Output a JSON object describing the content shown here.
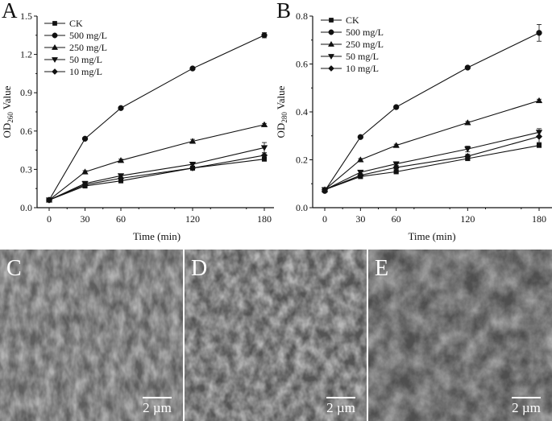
{
  "chart_data": [
    {
      "panel": "A",
      "type": "line",
      "title": "",
      "xlabel": "Time (min)",
      "ylabel": "OD260 Value",
      "ylabel_main": "OD",
      "ylabel_sub": "260",
      "ylabel_tail": " Value",
      "x": [
        0,
        30,
        60,
        120,
        180
      ],
      "xticks": [
        "0",
        "30",
        "60",
        "120",
        "180"
      ],
      "yticks": [
        "0.0",
        "0.3",
        "0.6",
        "0.9",
        "1.2",
        "1.5"
      ],
      "ylim": [
        0,
        1.5
      ],
      "grid": false,
      "legend_position": "upper left",
      "series": [
        {
          "name": "CK",
          "marker": "square",
          "values": [
            0.06,
            0.17,
            0.21,
            0.31,
            0.38
          ],
          "errors": [
            0.005,
            0.01,
            0.01,
            0.01,
            0.015
          ]
        },
        {
          "name": "500 mg/L",
          "marker": "circle",
          "values": [
            0.06,
            0.54,
            0.78,
            1.09,
            1.35
          ],
          "errors": [
            0.005,
            0.01,
            0.01,
            0.01,
            0.02
          ]
        },
        {
          "name": "250 mg/L",
          "marker": "triangle-up",
          "values": [
            0.06,
            0.28,
            0.37,
            0.52,
            0.65
          ],
          "errors": [
            0.005,
            0.01,
            0.01,
            0.015,
            0.01
          ]
        },
        {
          "name": "50 mg/L",
          "marker": "triangle-down",
          "values": [
            0.06,
            0.19,
            0.25,
            0.34,
            0.47
          ],
          "errors": [
            0.005,
            0.01,
            0.015,
            0.015,
            0.04
          ]
        },
        {
          "name": "10 mg/L",
          "marker": "diamond",
          "values": [
            0.06,
            0.18,
            0.23,
            0.31,
            0.41
          ],
          "errors": [
            0.005,
            0.01,
            0.01,
            0.01,
            0.02
          ]
        }
      ]
    },
    {
      "panel": "B",
      "type": "line",
      "title": "",
      "xlabel": "Time (min)",
      "ylabel": "OD280 Value",
      "ylabel_main": "OD",
      "ylabel_sub": "280",
      "ylabel_tail": " Value",
      "x": [
        0,
        30,
        60,
        120,
        180
      ],
      "xticks": [
        "0",
        "30",
        "60",
        "120",
        "180"
      ],
      "yticks": [
        "0.0",
        "0.2",
        "0.4",
        "0.6",
        "0.8"
      ],
      "ylim": [
        0,
        0.8
      ],
      "grid": false,
      "legend_position": "upper left",
      "series": [
        {
          "name": "CK",
          "marker": "square",
          "values": [
            0.075,
            0.13,
            0.15,
            0.205,
            0.26
          ],
          "errors": [
            0.003,
            0.005,
            0.005,
            0.006,
            0.006
          ]
        },
        {
          "name": "500 mg/L",
          "marker": "circle",
          "values": [
            0.07,
            0.295,
            0.42,
            0.585,
            0.73
          ],
          "errors": [
            0.003,
            0.005,
            0.006,
            0.006,
            0.035
          ]
        },
        {
          "name": "250 mg/L",
          "marker": "triangle-up",
          "values": [
            0.075,
            0.2,
            0.26,
            0.355,
            0.447
          ],
          "errors": [
            0.003,
            0.005,
            0.005,
            0.005,
            0.006
          ]
        },
        {
          "name": "50 mg/L",
          "marker": "triangle-down",
          "values": [
            0.075,
            0.148,
            0.183,
            0.245,
            0.315
          ],
          "errors": [
            0.003,
            0.005,
            0.006,
            0.012,
            0.015
          ]
        },
        {
          "name": "10 mg/L",
          "marker": "diamond",
          "values": [
            0.075,
            0.135,
            0.168,
            0.215,
            0.297
          ],
          "errors": [
            0.003,
            0.005,
            0.006,
            0.008,
            0.025
          ]
        }
      ]
    }
  ],
  "panels": {
    "A": {
      "label": "A"
    },
    "B": {
      "label": "B"
    },
    "C": {
      "label": "C",
      "scale_bar": "2 µm"
    },
    "D": {
      "label": "D",
      "scale_bar": "2 µm"
    },
    "E": {
      "label": "E",
      "scale_bar": "2 µm"
    }
  }
}
